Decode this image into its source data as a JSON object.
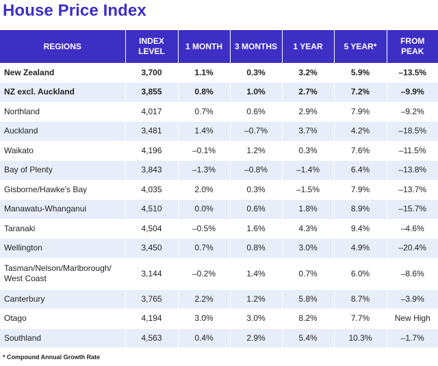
{
  "title": "House Price Index",
  "chart_data": {
    "type": "table",
    "title": "House Price Index",
    "columns": [
      "REGIONS",
      "INDEX LEVEL",
      "1 MONTH",
      "3 MONTHS",
      "1 YEAR",
      "5 YEAR*",
      "FROM PEAK"
    ],
    "rows": [
      {
        "region": "New Zealand",
        "index": "3,700",
        "m1": "1.1%",
        "m3": "0.3%",
        "y1": "3.2%",
        "y5": "5.9%",
        "peak": "–13.5%",
        "bold": true
      },
      {
        "region": "NZ excl. Auckland",
        "index": "3,855",
        "m1": "0.8%",
        "m3": "1.0%",
        "y1": "2.7%",
        "y5": "7.2%",
        "peak": "–9.9%",
        "bold": true
      },
      {
        "region": "Northland",
        "index": "4,017",
        "m1": "0.7%",
        "m3": "0.6%",
        "y1": "2.9%",
        "y5": "7.9%",
        "peak": "–9.2%"
      },
      {
        "region": "Auckland",
        "index": "3,481",
        "m1": "1.4%",
        "m3": "–0.7%",
        "y1": "3.7%",
        "y5": "4.2%",
        "peak": "–18.5%"
      },
      {
        "region": "Waikato",
        "index": "4,196",
        "m1": "–0.1%",
        "m3": "1.2%",
        "y1": "0.3%",
        "y5": "7.6%",
        "peak": "–11.5%"
      },
      {
        "region": "Bay of Plenty",
        "index": "3,843",
        "m1": "–1.3%",
        "m3": "–0.8%",
        "y1": "–1.4%",
        "y5": "6.4%",
        "peak": "–13.8%"
      },
      {
        "region": "Gisborne/Hawke's Bay",
        "index": "4,035",
        "m1": "2.0%",
        "m3": "0.3%",
        "y1": "–1.5%",
        "y5": "7.9%",
        "peak": "–13.7%"
      },
      {
        "region": "Manawatu-Whanganui",
        "index": "4,510",
        "m1": "0.0%",
        "m3": "0.6%",
        "y1": "1.8%",
        "y5": "8.9%",
        "peak": "–15.7%"
      },
      {
        "region": "Taranaki",
        "index": "4,504",
        "m1": "–0.5%",
        "m3": "1.6%",
        "y1": "4.3%",
        "y5": "9.4%",
        "peak": "–4.6%"
      },
      {
        "region": "Wellington",
        "index": "3,450",
        "m1": "0.7%",
        "m3": "0.8%",
        "y1": "3.0%",
        "y5": "4.9%",
        "peak": "–20.4%"
      },
      {
        "region": "Tasman/Nelson/Marlborough/ West Coast",
        "index": "3,144",
        "m1": "–0.2%",
        "m3": "1.4%",
        "y1": "0.7%",
        "y5": "6.0%",
        "peak": "–8.6%",
        "tall": true
      },
      {
        "region": "Canterbury",
        "index": "3,765",
        "m1": "2.2%",
        "m3": "1.2%",
        "y1": "5.8%",
        "y5": "8.7%",
        "peak": "–3.9%"
      },
      {
        "region": "Otago",
        "index": "4,194",
        "m1": "3.0%",
        "m3": "3.0%",
        "y1": "8.2%",
        "y5": "7.7%",
        "peak": "New High"
      },
      {
        "region": "Southland",
        "index": "4,563",
        "m1": "0.4%",
        "m3": "2.9%",
        "y1": "5.4%",
        "y5": "10.3%",
        "peak": "–1.7%"
      }
    ]
  },
  "footnote": "* Compound Annual Growth Rate",
  "colors": {
    "header_bg": "#3d2ec4",
    "stripe": "#e7eef9",
    "title": "#3d2ec4"
  }
}
